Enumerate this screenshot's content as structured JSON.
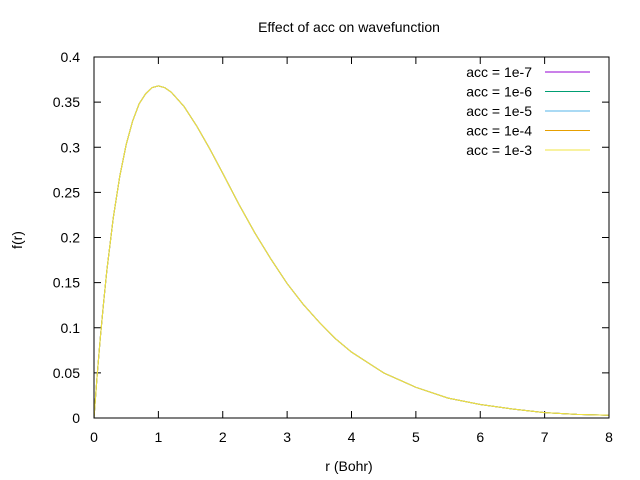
{
  "chart_data": {
    "type": "line",
    "title": "Effect of acc on wavefunction",
    "xlabel": "r (Bohr)",
    "ylabel": "f(r)",
    "xlim": [
      0,
      8
    ],
    "ylim": [
      0,
      0.4
    ],
    "xticks": [
      0,
      1,
      2,
      3,
      4,
      5,
      6,
      7,
      8
    ],
    "xtick_labels": [
      "0",
      "1",
      "2",
      "3",
      "4",
      "5",
      "6",
      "7",
      "8"
    ],
    "yticks": [
      0,
      0.05,
      0.1,
      0.15,
      0.2,
      0.25,
      0.3,
      0.35,
      0.4
    ],
    "ytick_labels": [
      "0",
      "0.05",
      "0.1",
      "0.15",
      "0.2",
      "0.25",
      "0.3",
      "0.35",
      "0.4"
    ],
    "grid": false,
    "legend_position": "top-right",
    "x": [
      0,
      0.05,
      0.1,
      0.15,
      0.2,
      0.3,
      0.4,
      0.5,
      0.6,
      0.7,
      0.8,
      0.9,
      1.0,
      1.1,
      1.2,
      1.4,
      1.6,
      1.8,
      2.0,
      2.25,
      2.5,
      2.75,
      3.0,
      3.25,
      3.5,
      3.75,
      4.0,
      4.5,
      5.0,
      5.5,
      6.0,
      6.5,
      7.0,
      7.5,
      8.0
    ],
    "series": [
      {
        "name": "acc = 1e-7",
        "color": "#9400d3",
        "values": [
          0,
          0.048,
          0.09,
          0.129,
          0.164,
          0.222,
          0.268,
          0.303,
          0.329,
          0.348,
          0.359,
          0.366,
          0.368,
          0.366,
          0.361,
          0.345,
          0.323,
          0.298,
          0.271,
          0.237,
          0.205,
          0.176,
          0.149,
          0.126,
          0.106,
          0.088,
          0.073,
          0.05,
          0.034,
          0.022,
          0.015,
          0.01,
          0.006,
          0.004,
          0.003
        ]
      },
      {
        "name": "acc = 1e-6",
        "color": "#009e73",
        "values": [
          0,
          0.048,
          0.09,
          0.129,
          0.164,
          0.222,
          0.268,
          0.303,
          0.329,
          0.348,
          0.359,
          0.366,
          0.368,
          0.366,
          0.361,
          0.345,
          0.323,
          0.298,
          0.271,
          0.237,
          0.205,
          0.176,
          0.149,
          0.126,
          0.106,
          0.088,
          0.073,
          0.05,
          0.034,
          0.022,
          0.015,
          0.01,
          0.006,
          0.004,
          0.003
        ]
      },
      {
        "name": "acc = 1e-5",
        "color": "#56b4e9",
        "values": [
          0,
          0.048,
          0.09,
          0.129,
          0.164,
          0.222,
          0.268,
          0.303,
          0.329,
          0.348,
          0.359,
          0.366,
          0.368,
          0.366,
          0.361,
          0.345,
          0.323,
          0.298,
          0.271,
          0.237,
          0.205,
          0.176,
          0.149,
          0.126,
          0.106,
          0.088,
          0.073,
          0.05,
          0.034,
          0.022,
          0.015,
          0.01,
          0.006,
          0.004,
          0.003
        ]
      },
      {
        "name": "acc = 1e-4",
        "color": "#e69f00",
        "values": [
          0,
          0.048,
          0.09,
          0.129,
          0.164,
          0.222,
          0.268,
          0.303,
          0.329,
          0.348,
          0.359,
          0.366,
          0.368,
          0.366,
          0.361,
          0.345,
          0.323,
          0.298,
          0.271,
          0.237,
          0.205,
          0.176,
          0.149,
          0.126,
          0.106,
          0.088,
          0.073,
          0.05,
          0.034,
          0.022,
          0.015,
          0.01,
          0.006,
          0.004,
          0.003
        ]
      },
      {
        "name": "acc = 1e-3",
        "color": "#f0e442",
        "values": [
          0,
          0.048,
          0.09,
          0.129,
          0.164,
          0.222,
          0.268,
          0.303,
          0.329,
          0.348,
          0.359,
          0.366,
          0.368,
          0.366,
          0.361,
          0.345,
          0.323,
          0.298,
          0.271,
          0.237,
          0.205,
          0.176,
          0.149,
          0.126,
          0.106,
          0.088,
          0.073,
          0.05,
          0.034,
          0.022,
          0.015,
          0.01,
          0.006,
          0.004,
          0.003
        ]
      }
    ]
  }
}
